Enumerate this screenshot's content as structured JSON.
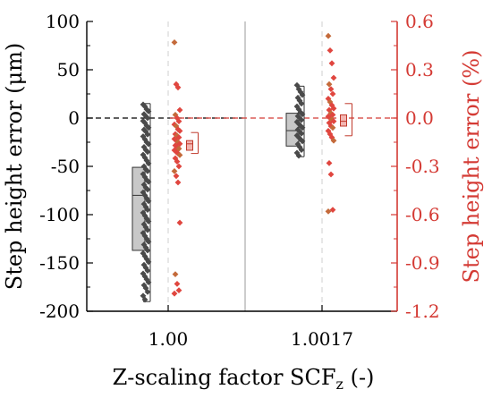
{
  "chart_data": {
    "type": "box-scatter",
    "xlabel": "Z-scaling factor SCF",
    "xlabel_sub": "z",
    "xlabel_suffix": " (-)",
    "ylabel_left": "Step height error (μm)",
    "ylabel_right": "Step height error (%)",
    "ylim_left": [
      -200,
      100
    ],
    "ylim_right": [
      -1.2,
      0.6
    ],
    "yticks_left": [
      "-200",
      "-150",
      "-100",
      "-50",
      "0",
      "50",
      "100"
    ],
    "yticks_right": [
      "-1.2",
      "-0.9",
      "-0.6",
      "-0.3",
      "0.0",
      "0.3",
      "0.6"
    ],
    "categories": [
      "1.00",
      "1.0017"
    ],
    "colors": {
      "left": "#555555",
      "right": "#d43a34",
      "box_left": "#c8c8c8",
      "box_right": "#f2b6b2"
    },
    "series": [
      {
        "axis": "left",
        "groups": [
          {
            "box": {
              "min": -190,
              "q1": -137,
              "median": -80,
              "q3": -51,
              "max": 15,
              "mean": -96
            },
            "points": [
              14,
              12,
              9,
              7,
              4,
              2,
              0,
              -3,
              -5,
              -8,
              -10,
              -12,
              -14,
              -17,
              -19,
              -22,
              -25,
              -27,
              -30,
              -33,
              -35,
              -38,
              -41,
              -44,
              -47,
              -50,
              -53,
              -55,
              -58,
              -61,
              -64,
              -66,
              -69,
              -72,
              -74,
              -77,
              -80,
              -83,
              -86,
              -89,
              -92,
              -95,
              -98,
              -101,
              -104,
              -107,
              -110,
              -113,
              -116,
              -119,
              -122,
              -125,
              -128,
              -131,
              -134,
              -137,
              -140,
              -143,
              -146,
              -149,
              -152,
              -155,
              -158,
              -161,
              -164,
              -167,
              -170,
              -173,
              -176,
              -180,
              -184,
              -188
            ]
          },
          {
            "box": {
              "min": -40,
              "q1": -29,
              "median": -13,
              "q3": 5,
              "max": 33,
              "mean": -10
            },
            "points": [
              34,
              30,
              27,
              24,
              21,
              18,
              15,
              12,
              9,
              6,
              4,
              2,
              0,
              -2,
              -4,
              -6,
              -8,
              -10,
              -12,
              -14,
              -16,
              -18,
              -20,
              -22,
              -24,
              -27,
              -30,
              -33,
              -36,
              -39
            ]
          }
        ]
      },
      {
        "axis": "right",
        "groups": [
          {
            "box": {
              "min": -0.22,
              "q1": -0.2,
              "median": -0.16,
              "q3": -0.14,
              "max": -0.09,
              "mean": -0.17
            },
            "points": [
              0.47,
              0.21,
              0.19,
              0.05,
              0.02,
              0.0,
              -0.02,
              -0.04,
              -0.05,
              -0.07,
              -0.08,
              -0.1,
              -0.11,
              -0.12,
              -0.13,
              -0.14,
              -0.15,
              -0.16,
              -0.17,
              -0.18,
              -0.19,
              -0.2,
              -0.21,
              -0.22,
              -0.23,
              -0.25,
              -0.27,
              -0.3,
              -0.33,
              -0.36,
              -0.4,
              -0.65,
              -0.97,
              -1.03,
              -1.07,
              -1.09
            ]
          },
          {
            "box": {
              "min": -0.11,
              "q1": -0.05,
              "median": -0.02,
              "q3": 0.02,
              "max": 0.09,
              "mean": -0.02
            },
            "points": [
              0.51,
              0.42,
              0.34,
              0.25,
              0.21,
              0.18,
              0.15,
              0.12,
              0.1,
              0.08,
              0.06,
              0.05,
              0.03,
              0.02,
              0.01,
              0.0,
              -0.01,
              -0.02,
              -0.03,
              -0.05,
              -0.06,
              -0.08,
              -0.1,
              -0.12,
              -0.14,
              -0.28,
              -0.35,
              -0.57,
              -0.58
            ]
          }
        ]
      }
    ],
    "reference_line": {
      "y": 0,
      "style": "dashed"
    }
  }
}
